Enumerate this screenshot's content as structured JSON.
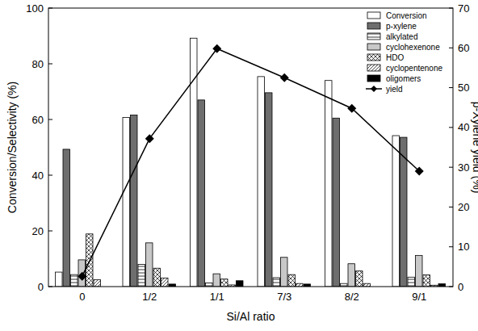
{
  "chart_data": {
    "type": "bar",
    "categories": [
      "0",
      "1/2",
      "1/1",
      "7/3",
      "8/2",
      "9/1"
    ],
    "x_label": "Si/Al ratio",
    "y_label": "Conversion/Selectivity (%)",
    "y2_label": "p-Xylene yield (%)",
    "ylim": [
      0,
      100
    ],
    "yticks": [
      0,
      20,
      40,
      60,
      80,
      100
    ],
    "y2lim": [
      0,
      70
    ],
    "y2ticks": [
      0,
      10,
      20,
      30,
      40,
      50,
      60,
      70
    ],
    "legend": "top-right",
    "series": [
      {
        "name": "Conversion",
        "color": "#ffffff",
        "values": [
          5.2,
          60.7,
          89.2,
          75.4,
          74.0,
          54.2
        ]
      },
      {
        "name": "p-xylene",
        "color": "#6e6e6e",
        "values": [
          49.3,
          61.6,
          67.0,
          69.6,
          60.5,
          53.6
        ]
      },
      {
        "name": "alkylated",
        "color": "#ffffff",
        "values": [
          4.3,
          8.0,
          1.3,
          3.2,
          1.1,
          3.4
        ]
      },
      {
        "name": "cyclohexenone",
        "color": "#c8c8c8",
        "values": [
          9.6,
          15.7,
          4.6,
          10.5,
          8.2,
          11.2
        ]
      },
      {
        "name": "HDO",
        "color": "#ffffff",
        "values": [
          18.9,
          6.6,
          2.7,
          4.3,
          5.6,
          4.2
        ]
      },
      {
        "name": "cyclopentenone",
        "color": "#ffffff",
        "values": [
          2.5,
          3.1,
          0.6,
          1.1,
          1.1,
          0.5
        ]
      },
      {
        "name": "oligomers",
        "color": "#000000",
        "values": [
          0,
          0.9,
          2.1,
          0.9,
          0,
          1.0
        ]
      },
      {
        "name": "yield",
        "color": "#000000",
        "type": "line",
        "marker": "diamond",
        "axis": "y2",
        "values": [
          2.6,
          37.2,
          59.8,
          52.5,
          44.8,
          29.0
        ]
      }
    ]
  }
}
